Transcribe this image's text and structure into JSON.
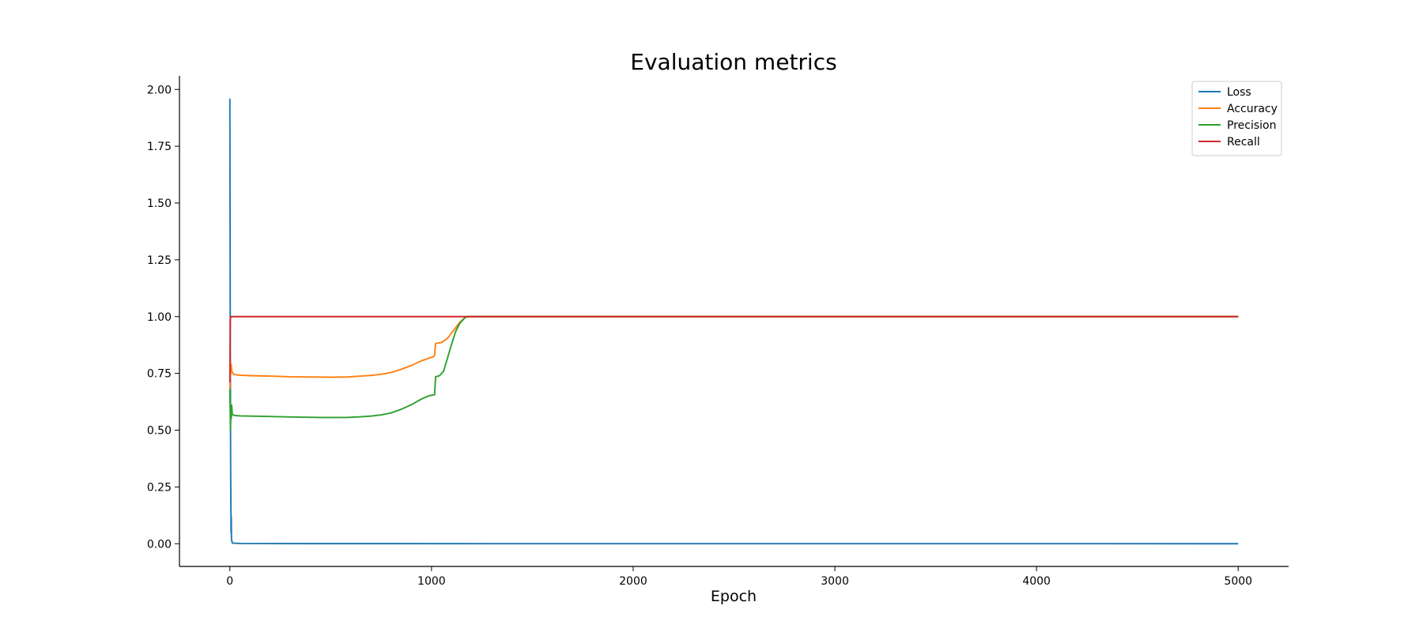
{
  "chart_data": {
    "type": "line",
    "title": "Evaluation metrics",
    "xlabel": "Epoch",
    "ylabel": "",
    "xlim": [
      -250,
      5250
    ],
    "ylim": [
      -0.1,
      2.06
    ],
    "xticks": [
      0,
      1000,
      2000,
      3000,
      4000,
      5000
    ],
    "xtick_labels": [
      "0",
      "1000",
      "2000",
      "3000",
      "4000",
      "5000"
    ],
    "yticks": [
      0.0,
      0.25,
      0.5,
      0.75,
      1.0,
      1.25,
      1.5,
      1.75,
      2.0
    ],
    "ytick_labels": [
      "0.00",
      "0.25",
      "0.50",
      "0.75",
      "1.00",
      "1.25",
      "1.50",
      "1.75",
      "2.00"
    ],
    "grid": false,
    "legend_position": "top-right",
    "series": [
      {
        "name": "Loss",
        "color": "#1f77b4",
        "points": [
          [
            0,
            1.96
          ],
          [
            2,
            0.9
          ],
          [
            4,
            0.3
          ],
          [
            6,
            0.05
          ],
          [
            7,
            0.12
          ],
          [
            8,
            0.02
          ],
          [
            12,
            0.003
          ],
          [
            50,
            0.001
          ],
          [
            200,
            0.0005
          ],
          [
            5000,
            0.0
          ]
        ]
      },
      {
        "name": "Accuracy",
        "color": "#ff7f0e",
        "points": [
          [
            0,
            0.68
          ],
          [
            3,
            0.8
          ],
          [
            5,
            0.75
          ],
          [
            7,
            0.79
          ],
          [
            9,
            0.76
          ],
          [
            12,
            0.755
          ],
          [
            20,
            0.745
          ],
          [
            50,
            0.742
          ],
          [
            100,
            0.74
          ],
          [
            200,
            0.738
          ],
          [
            300,
            0.735
          ],
          [
            400,
            0.734
          ],
          [
            500,
            0.733
          ],
          [
            580,
            0.734
          ],
          [
            650,
            0.738
          ],
          [
            700,
            0.741
          ],
          [
            750,
            0.746
          ],
          [
            800,
            0.754
          ],
          [
            850,
            0.768
          ],
          [
            900,
            0.785
          ],
          [
            950,
            0.805
          ],
          [
            990,
            0.818
          ],
          [
            1010,
            0.823
          ],
          [
            1015,
            0.83
          ],
          [
            1020,
            0.882
          ],
          [
            1050,
            0.886
          ],
          [
            1080,
            0.905
          ],
          [
            1110,
            0.94
          ],
          [
            1140,
            0.975
          ],
          [
            1165,
            0.995
          ],
          [
            1180,
            1.0
          ],
          [
            5000,
            1.0
          ]
        ]
      },
      {
        "name": "Precision",
        "color": "#2ca02c",
        "points": [
          [
            0,
            0.68
          ],
          [
            3,
            0.5
          ],
          [
            5,
            0.6
          ],
          [
            7,
            0.55
          ],
          [
            9,
            0.61
          ],
          [
            12,
            0.57
          ],
          [
            20,
            0.565
          ],
          [
            50,
            0.563
          ],
          [
            150,
            0.561
          ],
          [
            300,
            0.558
          ],
          [
            450,
            0.556
          ],
          [
            580,
            0.556
          ],
          [
            650,
            0.559
          ],
          [
            700,
            0.562
          ],
          [
            750,
            0.567
          ],
          [
            800,
            0.576
          ],
          [
            850,
            0.592
          ],
          [
            900,
            0.612
          ],
          [
            950,
            0.637
          ],
          [
            990,
            0.652
          ],
          [
            1015,
            0.656
          ],
          [
            1020,
            0.735
          ],
          [
            1040,
            0.74
          ],
          [
            1060,
            0.76
          ],
          [
            1080,
            0.82
          ],
          [
            1100,
            0.88
          ],
          [
            1120,
            0.935
          ],
          [
            1140,
            0.97
          ],
          [
            1165,
            0.995
          ],
          [
            1180,
            1.0
          ],
          [
            5000,
            1.0
          ]
        ]
      },
      {
        "name": "Recall",
        "color": "#d62728",
        "points": [
          [
            0,
            0.71
          ],
          [
            2,
            0.98
          ],
          [
            4,
            1.0
          ],
          [
            5000,
            1.0
          ]
        ]
      }
    ]
  }
}
